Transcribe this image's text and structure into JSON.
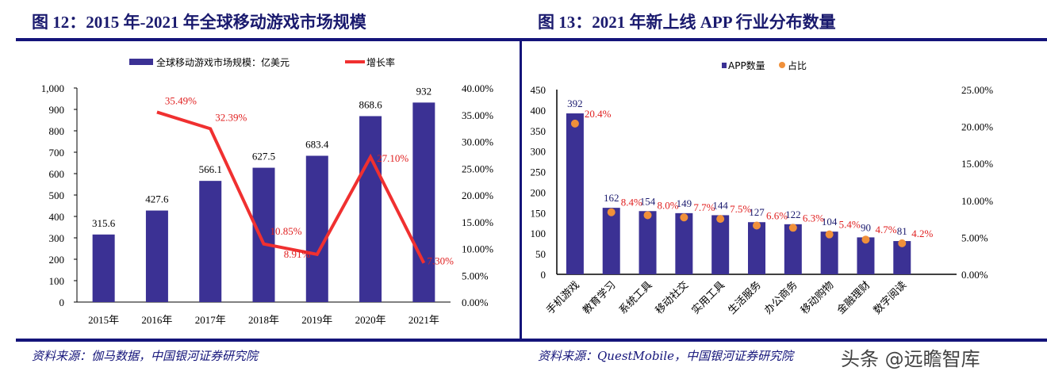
{
  "left": {
    "title": "图 12：2015 年-2021 年全球移动游戏市场规模",
    "source": "资料来源：伽马数据，中国银河证券研究院"
  },
  "right": {
    "title": "图 13：2021 年新上线 APP 行业分布数量",
    "source": "资料来源：QuestMobile，中国银河证券研究院"
  },
  "watermark": "头条 @远瞻智库",
  "chart_data": [
    {
      "type": "bar+line",
      "categories": [
        "2015年",
        "2016年",
        "2017年",
        "2018年",
        "2019年",
        "2020年",
        "2021年"
      ],
      "series": [
        {
          "name": "全球移动游戏市场规模：亿美元",
          "type": "bar",
          "color": "#3b3194",
          "values": [
            315.6,
            427.6,
            566.1,
            627.5,
            683.4,
            868.6,
            932
          ],
          "labels": [
            "315.6",
            "427.6",
            "566.1",
            "627.5",
            "683.4",
            "868.6",
            "932"
          ]
        },
        {
          "name": "增长率",
          "type": "line",
          "color": "#f03030",
          "axis": "right",
          "values": [
            null,
            35.49,
            32.39,
            10.85,
            8.91,
            27.1,
            7.3
          ],
          "labels": [
            "",
            "35.49%",
            "32.39%",
            "10.85%",
            "8.91%",
            "27.10%",
            "7.30%"
          ]
        }
      ],
      "ylim": [
        0,
        1000
      ],
      "yticks": [
        "0",
        "100",
        "200",
        "300",
        "400",
        "500",
        "600",
        "700",
        "800",
        "900",
        "1,000"
      ],
      "y2lim": [
        0,
        40
      ],
      "y2ticks": [
        "0.00%",
        "5.00%",
        "10.00%",
        "15.00%",
        "20.00%",
        "25.00%",
        "30.00%",
        "35.00%",
        "40.00%"
      ],
      "legend": "top"
    },
    {
      "type": "bar+scatter",
      "categories": [
        "手机游戏",
        "教育学习",
        "系统工具",
        "移动社交",
        "实用工具",
        "生活服务",
        "办公商务",
        "移动购物",
        "金融理财",
        "数字阅读"
      ],
      "series": [
        {
          "name": "APP数量",
          "type": "bar",
          "color": "#3b3194",
          "values": [
            392,
            162,
            154,
            149,
            144,
            127,
            122,
            104,
            90,
            81
          ]
        },
        {
          "name": "占比",
          "type": "scatter",
          "color": "#f0903a",
          "axis": "right",
          "values": [
            20.4,
            8.4,
            8.0,
            7.7,
            7.5,
            6.6,
            6.3,
            5.4,
            4.7,
            4.2
          ],
          "labels": [
            "20.4%",
            "8.4%",
            "8.0%",
            "7.7%",
            "7.5%",
            "6.6%",
            "6.3%",
            "5.4%",
            "4.7%",
            "4.2%"
          ]
        }
      ],
      "ylim": [
        0,
        450
      ],
      "yticks": [
        "0",
        "50",
        "100",
        "150",
        "200",
        "250",
        "300",
        "350",
        "400",
        "450"
      ],
      "y2lim": [
        0,
        25
      ],
      "y2ticks": [
        "0.00%",
        "5.00%",
        "10.00%",
        "15.00%",
        "20.00%",
        "25.00%"
      ],
      "legend": "top"
    }
  ]
}
